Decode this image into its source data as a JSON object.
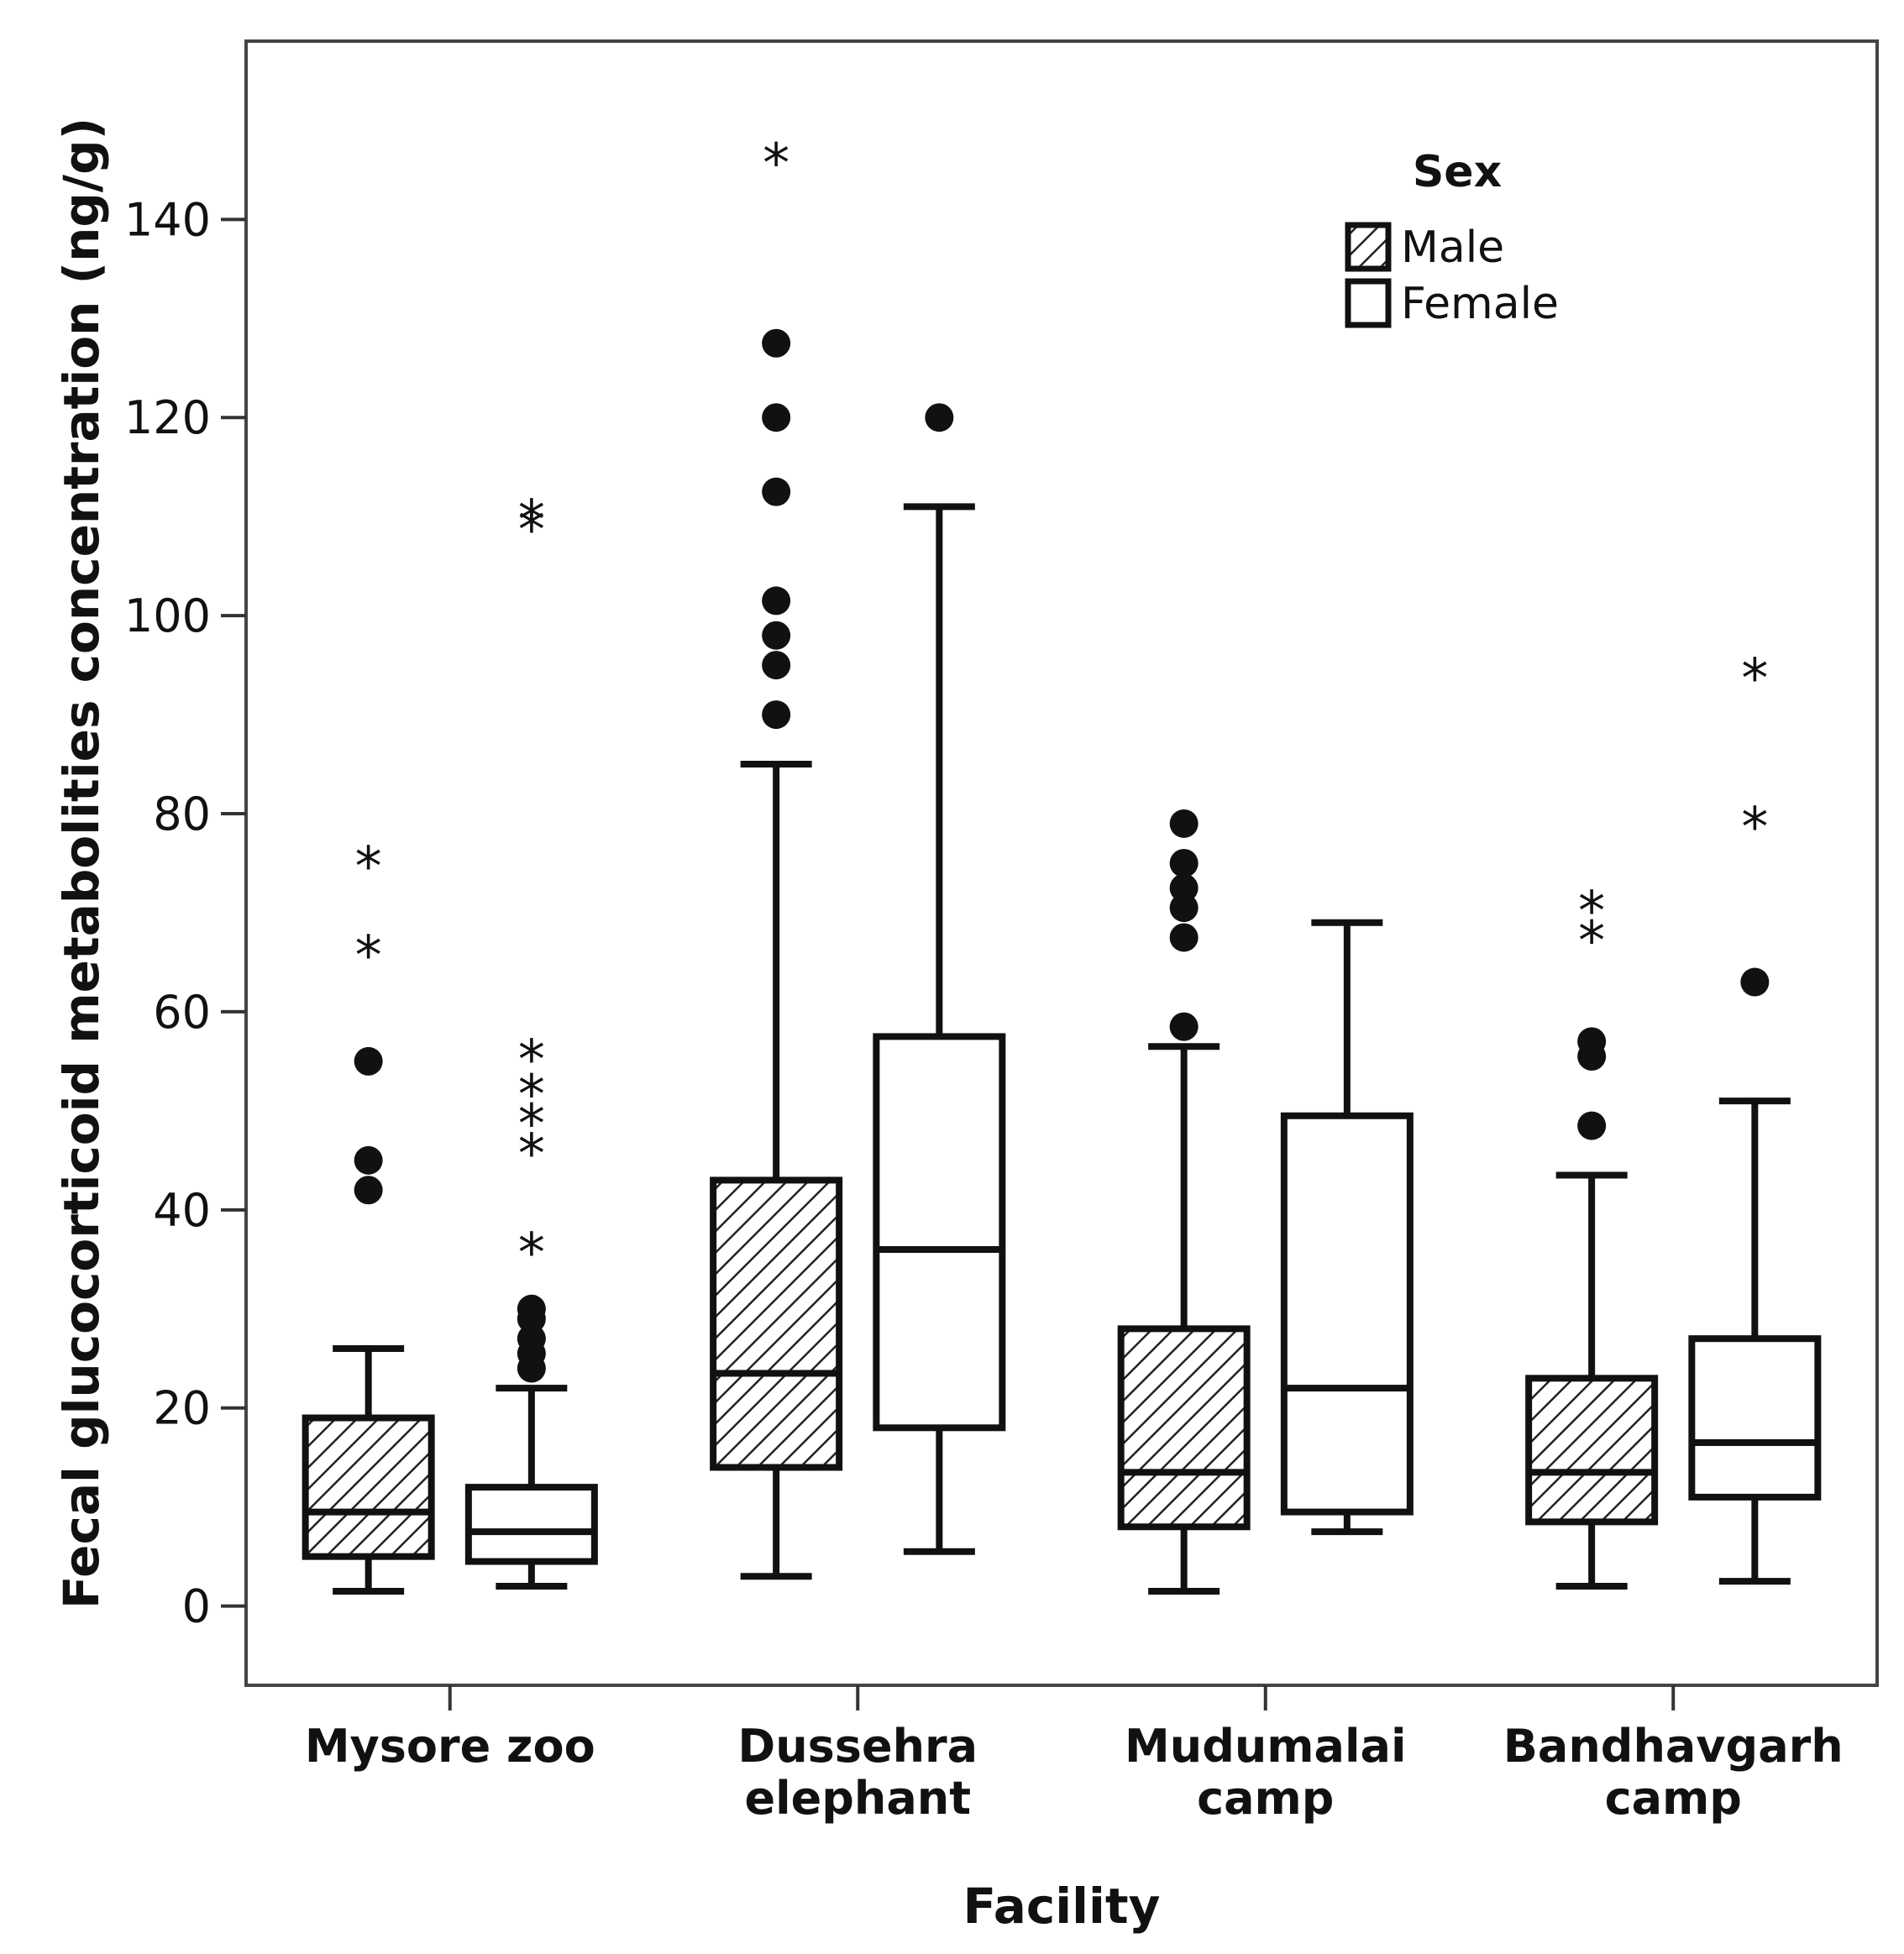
{
  "chart_data": {
    "type": "boxplot",
    "xlabel": "Facility",
    "ylabel": "Fecal glucocorticoid metabolities concentration (ng/g)",
    "ylim": [
      -8,
      158
    ],
    "yticks": [
      0,
      20,
      40,
      60,
      80,
      100,
      120,
      140
    ],
    "grid": false,
    "legend": {
      "title": "Sex",
      "position": "top-right",
      "entries": [
        {
          "label": "Male",
          "fill": "hatched"
        },
        {
          "label": "Female",
          "fill": "open"
        }
      ]
    },
    "categories": [
      {
        "label_lines": [
          "Mysore zoo"
        ]
      },
      {
        "label_lines": [
          "Dussehra",
          "elephant"
        ]
      },
      {
        "label_lines": [
          "Mudumalai",
          "camp"
        ]
      },
      {
        "label_lines": [
          "Bandhavgarh",
          "camp"
        ]
      }
    ],
    "series": [
      {
        "name": "Male",
        "boxes": [
          {
            "category": 0,
            "whisker_low": 1.5,
            "q1": 5,
            "median": 9.5,
            "q3": 19,
            "whisker_high": 26,
            "outliers": [
              42,
              45,
              55
            ],
            "extremes": [
              66,
              75
            ]
          },
          {
            "category": 1,
            "whisker_low": 3,
            "q1": 14,
            "median": 23.5,
            "q3": 43,
            "whisker_high": 85,
            "outliers": [
              90,
              95,
              98,
              101.5,
              112.5,
              120,
              127.5
            ],
            "extremes": [
              146
            ]
          },
          {
            "category": 2,
            "whisker_low": 1.5,
            "q1": 8,
            "median": 13.5,
            "q3": 28,
            "whisker_high": 56.5,
            "outliers": [
              58.5,
              67.5,
              70.5,
              72.5,
              75,
              79
            ],
            "extremes": []
          },
          {
            "category": 3,
            "whisker_low": 2,
            "q1": 8.5,
            "median": 13.5,
            "q3": 23,
            "whisker_high": 43.5,
            "outliers": [
              48.5,
              55.5,
              57
            ],
            "extremes": [
              67.5,
              70.5
            ]
          }
        ]
      },
      {
        "name": "Female",
        "boxes": [
          {
            "category": 0,
            "whisker_low": 2,
            "q1": 4.5,
            "median": 7.5,
            "q3": 12,
            "whisker_high": 22,
            "outliers": [
              24,
              25.5,
              27,
              29,
              30
            ],
            "extremes": [
              36,
              46,
              49,
              52,
              55.5,
              109,
              110
            ]
          },
          {
            "category": 1,
            "whisker_low": 5.5,
            "q1": 18,
            "median": 36,
            "q3": 57.5,
            "whisker_high": 111,
            "outliers": [
              120
            ],
            "extremes": []
          },
          {
            "category": 2,
            "whisker_low": 7.5,
            "q1": 9.5,
            "median": 22,
            "q3": 49.5,
            "whisker_high": 69,
            "outliers": [],
            "extremes": []
          },
          {
            "category": 3,
            "whisker_low": 2.5,
            "q1": 11,
            "median": 16.5,
            "q3": 27,
            "whisker_high": 51,
            "outliers": [
              63
            ],
            "extremes": [
              79,
              94
            ]
          }
        ]
      }
    ]
  }
}
